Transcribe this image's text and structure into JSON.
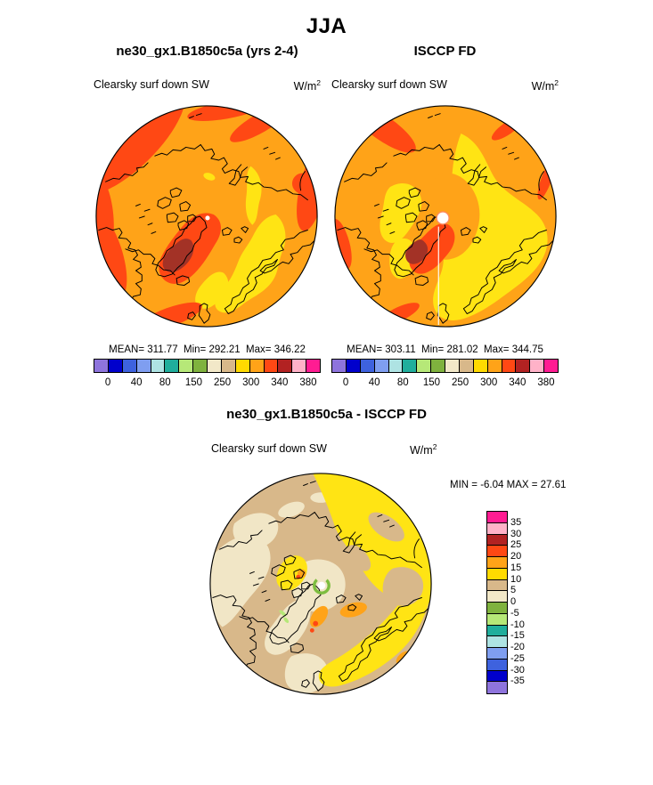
{
  "page": {
    "title": "JJA",
    "background": "#FFFFFF"
  },
  "panels": [
    {
      "title": "ne30_gx1.B1850c5a (yrs 2-4)",
      "field": "Clearsky surf down SW",
      "units_base": "W/m",
      "units_exp": "2",
      "stats": {
        "mean_label": "MEAN=",
        "mean": "311.77",
        "min_label": "Min=",
        "min": "292.21",
        "max_label": "Max=",
        "max": "346.22"
      }
    },
    {
      "title": "ISCCP FD",
      "field": "Clearsky surf down SW",
      "units_base": "W/m",
      "units_exp": "2",
      "stats": {
        "mean_label": "MEAN=",
        "mean": "303.11",
        "min_label": "Min=",
        "min": "281.02",
        "max_label": "Max=",
        "max": "344.75"
      }
    }
  ],
  "diff": {
    "title": "ne30_gx1.B1850c5a - ISCCP FD",
    "field": "Clearsky surf down SW",
    "units_base": "W/m",
    "units_exp": "2",
    "min_label": "MIN = ",
    "min": "-6.04",
    "max_label": "MAX = ",
    "max": "27.61"
  },
  "colorbar": {
    "colors": [
      "#8E74DC",
      "#0000CC",
      "#3E62DE",
      "#7F9EF0",
      "#AEE3E3",
      "#20AE9C",
      "#B6E878",
      "#7FB23E",
      "#F2E8C8",
      "#D8B88A",
      "#FFDA00",
      "#FFA318",
      "#FF4814",
      "#B22222",
      "#FFB2C8",
      "#FF1C92"
    ],
    "tick_labels": [
      "0",
      "40",
      "80",
      "150",
      "250",
      "300",
      "340",
      "380"
    ],
    "tick_boundaries": [
      1,
      3,
      5,
      7,
      9,
      11,
      13,
      15
    ]
  },
  "diff_colorbar": {
    "colors": [
      "#FF1C92",
      "#FFB2C8",
      "#B22222",
      "#FF4814",
      "#FFA318",
      "#FFDA00",
      "#D8B88A",
      "#F2E8C8",
      "#7FB23E",
      "#B6E878",
      "#20AE9C",
      "#AEE3E3",
      "#7F9EF0",
      "#3E62DE",
      "#0000CC",
      "#8E74DC"
    ],
    "labels": [
      "35",
      "30",
      "25",
      "20",
      "15",
      "10",
      "5",
      "0",
      "-5",
      "-10",
      "-15",
      "-20",
      "-25",
      "-30",
      "-35"
    ]
  },
  "map_colors": {
    "orange": "#FFA318",
    "yellow": "#FFE414",
    "orange_red": "#FF4814",
    "dark_red": "#A33226",
    "tan": "#D8B88A",
    "beige": "#F1E6C6",
    "green": "#7DBD3F",
    "light_green": "#B5E878",
    "coastline": "#000000",
    "pole_dot": "#FFFFFF"
  },
  "chart_data": [
    {
      "type": "heatmap",
      "subtype": "polar_stereographic_contour_map",
      "season": "JJA",
      "title": "ne30_gx1.B1850c5a (yrs 2-4)",
      "variable": "Clearsky surf down SW",
      "units": "W/m^2",
      "stats": {
        "mean": 311.77,
        "min": 292.21,
        "max": 346.22
      },
      "colorbar_labeled_levels": [
        0,
        40,
        80,
        150,
        250,
        300,
        340,
        380
      ],
      "legend_position": "bottom-horizontal",
      "notes": "Arctic polar view; field mostly 250-300 (orange) with 150-250 (yellow) band over the Eurasian/Barents sector, 300-340 (orange-red) along the low-latitude rim and around Greenland, and 340+ (dark red) over the Greenland interior; white dot at the pole."
    },
    {
      "type": "heatmap",
      "subtype": "polar_stereographic_contour_map",
      "season": "JJA",
      "title": "ISCCP FD",
      "variable": "Clearsky surf down SW",
      "units": "W/m^2",
      "stats": {
        "mean": 303.11,
        "min": 281.02,
        "max": 344.75
      },
      "colorbar_labeled_levels": [
        0,
        40,
        80,
        150,
        250,
        300,
        340,
        380
      ],
      "legend_position": "bottom-horizontal",
      "notes": "Large 150-250 (yellow) area over much of the Arctic basin and Eurasian side, orange cap near the pole, orange-red patches on the Pacific rim and over Greenland with a dark-red core; white missing-data disk and thin white meridian line at/below the pole."
    },
    {
      "type": "heatmap",
      "subtype": "polar_stereographic_contour_map",
      "season": "JJA",
      "title": "ne30_gx1.B1850c5a - ISCCP FD",
      "variable": "Clearsky surf down SW",
      "units": "W/m^2",
      "stats": {
        "min": -6.04,
        "max": 27.61
      },
      "levels": [
        -35,
        -30,
        -25,
        -20,
        -15,
        -10,
        -5,
        0,
        5,
        10,
        15,
        20,
        25,
        30,
        35
      ],
      "legend_position": "right-vertical",
      "notes": "Differences mostly 0-10 W/m^2 (beige/tan); 10-15 (yellow) over the Siberian and Atlantic/Nordic sectors; small 15-25 (orange/orange-red) spots near east Greenland and the Canadian Archipelago; slightly negative (green ring) around the pole dot."
    }
  ]
}
